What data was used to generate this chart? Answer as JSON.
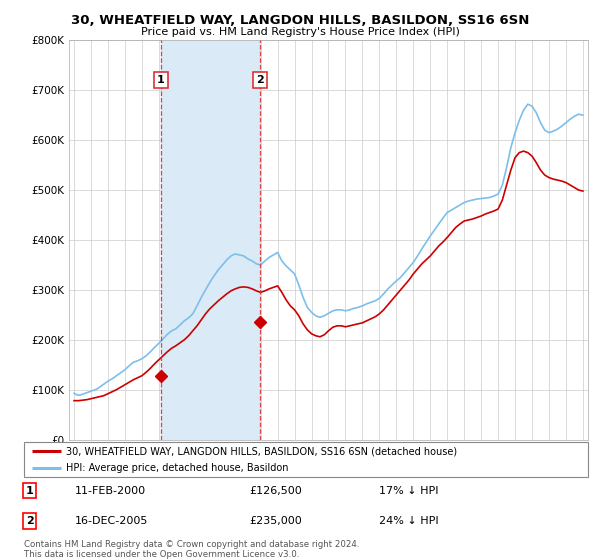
{
  "title1": "30, WHEATFIELD WAY, LANGDON HILLS, BASILDON, SS16 6SN",
  "title2": "Price paid vs. HM Land Registry's House Price Index (HPI)",
  "background_color": "#ffffff",
  "grid_color": "#cccccc",
  "hpi_color": "#7bbfea",
  "price_color": "#cc0000",
  "vline_color": "#dd3333",
  "shade_color": "#daeaf7",
  "ylim": [
    0,
    800000
  ],
  "yticks": [
    0,
    100000,
    200000,
    300000,
    400000,
    500000,
    600000,
    700000,
    800000
  ],
  "ytick_labels": [
    "£0",
    "£100K",
    "£200K",
    "£300K",
    "£400K",
    "£500K",
    "£600K",
    "£700K",
    "£800K"
  ],
  "legend_label_price": "30, WHEATFIELD WAY, LANGDON HILLS, BASILDON, SS16 6SN (detached house)",
  "legend_label_hpi": "HPI: Average price, detached house, Basildon",
  "transaction1_date": "11-FEB-2000",
  "transaction1_price": "£126,500",
  "transaction1_hpi": "17% ↓ HPI",
  "transaction1_year": 2000.12,
  "transaction1_value": 126500,
  "transaction2_date": "16-DEC-2005",
  "transaction2_price": "£235,000",
  "transaction2_hpi": "24% ↓ HPI",
  "transaction2_year": 2005.96,
  "transaction2_value": 235000,
  "footnote1": "Contains HM Land Registry data © Crown copyright and database right 2024.",
  "footnote2": "This data is licensed under the Open Government Licence v3.0.",
  "hpi_x": [
    1995.0,
    1995.08,
    1995.17,
    1995.25,
    1995.33,
    1995.42,
    1995.5,
    1995.58,
    1995.67,
    1995.75,
    1995.83,
    1995.92,
    1996.0,
    1996.08,
    1996.17,
    1996.25,
    1996.33,
    1996.42,
    1996.5,
    1996.58,
    1996.67,
    1996.75,
    1996.83,
    1996.92,
    1997.0,
    1997.25,
    1997.5,
    1997.75,
    1998.0,
    1998.25,
    1998.5,
    1998.75,
    1999.0,
    1999.25,
    1999.5,
    1999.75,
    2000.0,
    2000.25,
    2000.5,
    2000.75,
    2001.0,
    2001.25,
    2001.5,
    2001.75,
    2002.0,
    2002.25,
    2002.5,
    2002.75,
    2003.0,
    2003.25,
    2003.5,
    2003.75,
    2004.0,
    2004.25,
    2004.5,
    2004.75,
    2005.0,
    2005.25,
    2005.5,
    2005.75,
    2006.0,
    2006.25,
    2006.5,
    2006.75,
    2007.0,
    2007.25,
    2007.5,
    2007.75,
    2008.0,
    2008.25,
    2008.5,
    2008.75,
    2009.0,
    2009.25,
    2009.5,
    2009.75,
    2010.0,
    2010.25,
    2010.5,
    2010.75,
    2011.0,
    2011.25,
    2011.5,
    2011.75,
    2012.0,
    2012.25,
    2012.5,
    2012.75,
    2013.0,
    2013.25,
    2013.5,
    2013.75,
    2014.0,
    2014.25,
    2014.5,
    2014.75,
    2015.0,
    2015.25,
    2015.5,
    2015.75,
    2016.0,
    2016.25,
    2016.5,
    2016.75,
    2017.0,
    2017.25,
    2017.5,
    2017.75,
    2018.0,
    2018.25,
    2018.5,
    2018.75,
    2019.0,
    2019.25,
    2019.5,
    2019.75,
    2020.0,
    2020.25,
    2020.5,
    2020.75,
    2021.0,
    2021.25,
    2021.5,
    2021.75,
    2022.0,
    2022.25,
    2022.5,
    2022.75,
    2023.0,
    2023.25,
    2023.5,
    2023.75,
    2024.0,
    2024.25,
    2024.5,
    2024.75,
    2025.0
  ],
  "hpi_y": [
    93000,
    91000,
    90000,
    89000,
    89000,
    90000,
    91000,
    92000,
    93000,
    94000,
    95000,
    96000,
    97000,
    98000,
    99000,
    100000,
    101000,
    103000,
    105000,
    107000,
    109000,
    111000,
    113000,
    115000,
    117000,
    122000,
    128000,
    134000,
    140000,
    148000,
    155000,
    158000,
    162000,
    168000,
    176000,
    185000,
    193000,
    202000,
    211000,
    218000,
    222000,
    230000,
    238000,
    244000,
    252000,
    268000,
    285000,
    300000,
    315000,
    328000,
    340000,
    350000,
    360000,
    368000,
    372000,
    370000,
    368000,
    362000,
    358000,
    352000,
    350000,
    358000,
    365000,
    370000,
    375000,
    358000,
    348000,
    340000,
    332000,
    310000,
    285000,
    265000,
    255000,
    248000,
    245000,
    248000,
    253000,
    258000,
    260000,
    260000,
    258000,
    260000,
    263000,
    265000,
    268000,
    272000,
    275000,
    278000,
    283000,
    292000,
    302000,
    310000,
    318000,
    325000,
    335000,
    345000,
    355000,
    368000,
    382000,
    395000,
    408000,
    420000,
    432000,
    444000,
    455000,
    460000,
    465000,
    470000,
    475000,
    478000,
    480000,
    482000,
    483000,
    484000,
    485000,
    488000,
    492000,
    510000,
    545000,
    585000,
    615000,
    640000,
    660000,
    672000,
    668000,
    655000,
    635000,
    620000,
    615000,
    618000,
    622000,
    628000,
    635000,
    642000,
    648000,
    652000,
    650000
  ],
  "price_x": [
    1995.0,
    1995.25,
    1995.5,
    1995.75,
    1996.0,
    1996.25,
    1996.5,
    1996.75,
    1997.0,
    1997.25,
    1997.5,
    1997.75,
    1998.0,
    1998.25,
    1998.5,
    1998.75,
    1999.0,
    1999.25,
    1999.5,
    1999.75,
    2000.0,
    2000.25,
    2000.5,
    2000.75,
    2001.0,
    2001.25,
    2001.5,
    2001.75,
    2002.0,
    2002.25,
    2002.5,
    2002.75,
    2003.0,
    2003.25,
    2003.5,
    2003.75,
    2004.0,
    2004.25,
    2004.5,
    2004.75,
    2005.0,
    2005.25,
    2005.5,
    2005.75,
    2006.0,
    2006.25,
    2006.5,
    2006.75,
    2007.0,
    2007.25,
    2007.5,
    2007.75,
    2008.0,
    2008.25,
    2008.5,
    2008.75,
    2009.0,
    2009.25,
    2009.5,
    2009.75,
    2010.0,
    2010.25,
    2010.5,
    2010.75,
    2011.0,
    2011.25,
    2011.5,
    2011.75,
    2012.0,
    2012.25,
    2012.5,
    2012.75,
    2013.0,
    2013.25,
    2013.5,
    2013.75,
    2014.0,
    2014.25,
    2014.5,
    2014.75,
    2015.0,
    2015.25,
    2015.5,
    2015.75,
    2016.0,
    2016.25,
    2016.5,
    2016.75,
    2017.0,
    2017.25,
    2017.5,
    2017.75,
    2018.0,
    2018.25,
    2018.5,
    2018.75,
    2019.0,
    2019.25,
    2019.5,
    2019.75,
    2020.0,
    2020.25,
    2020.5,
    2020.75,
    2021.0,
    2021.25,
    2021.5,
    2021.75,
    2022.0,
    2022.25,
    2022.5,
    2022.75,
    2023.0,
    2023.25,
    2023.5,
    2023.75,
    2024.0,
    2024.25,
    2024.5,
    2024.75,
    2025.0
  ],
  "price_y": [
    78000,
    78000,
    79000,
    80000,
    82000,
    84000,
    86000,
    88000,
    92000,
    96000,
    100000,
    105000,
    110000,
    115000,
    120000,
    124000,
    128000,
    135000,
    143000,
    152000,
    160000,
    168000,
    176000,
    183000,
    188000,
    194000,
    200000,
    208000,
    218000,
    228000,
    240000,
    252000,
    262000,
    270000,
    278000,
    285000,
    292000,
    298000,
    302000,
    305000,
    306000,
    305000,
    302000,
    298000,
    295000,
    298000,
    302000,
    305000,
    308000,
    295000,
    280000,
    268000,
    260000,
    248000,
    232000,
    220000,
    212000,
    208000,
    206000,
    210000,
    218000,
    225000,
    228000,
    228000,
    226000,
    228000,
    230000,
    232000,
    234000,
    238000,
    242000,
    246000,
    252000,
    260000,
    270000,
    280000,
    290000,
    300000,
    310000,
    320000,
    332000,
    342000,
    352000,
    360000,
    368000,
    378000,
    388000,
    396000,
    405000,
    415000,
    425000,
    432000,
    438000,
    440000,
    442000,
    445000,
    448000,
    452000,
    455000,
    458000,
    462000,
    480000,
    510000,
    540000,
    565000,
    575000,
    578000,
    575000,
    568000,
    555000,
    540000,
    530000,
    525000,
    522000,
    520000,
    518000,
    515000,
    510000,
    505000,
    500000,
    498000
  ]
}
